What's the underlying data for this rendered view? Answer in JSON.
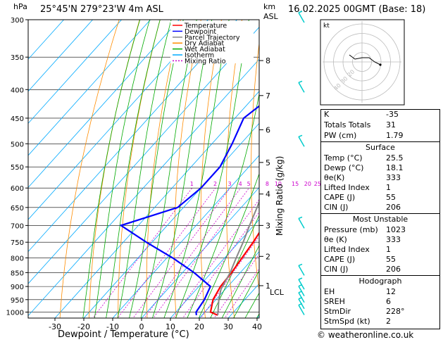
{
  "header": {
    "hpa_label": "hPa",
    "location": "25°45'N  279°23'W  4m  ASL",
    "km_label": "km",
    "asl_label": "ASL",
    "datetime": "16.02.2025  00GMT  (Base: 18)"
  },
  "footer": {
    "copyright": "© weatheronline.co.uk"
  },
  "chart_data": {
    "type": "skew-t",
    "xlabel": "Dewpoint / Temperature (°C)",
    "ylabel_right": "Mixing Ratio (g/kg)",
    "x_ticks": [
      -30,
      -20,
      -10,
      0,
      10,
      20,
      30,
      40
    ],
    "pressure_ticks": [
      300,
      350,
      400,
      450,
      500,
      550,
      600,
      650,
      700,
      750,
      800,
      850,
      900,
      950,
      1000
    ],
    "km_ticks": [
      {
        "label": "8",
        "p": 355
      },
      {
        "label": "7",
        "p": 410
      },
      {
        "label": "6",
        "p": 472
      },
      {
        "label": "5",
        "p": 540
      },
      {
        "label": "4",
        "p": 615
      },
      {
        "label": "3",
        "p": 700
      },
      {
        "label": "2",
        "p": 795
      },
      {
        "label": "1",
        "p": 897
      }
    ],
    "lcl_label": "LCL",
    "lcl_p": 910,
    "mixing_ratio_labels": [
      "1",
      "2",
      "3",
      "4",
      "5",
      "8",
      "10",
      "15",
      "20",
      "25"
    ],
    "mixing_ratio_values": [
      1,
      2,
      3,
      4,
      5,
      8,
      10,
      15,
      20,
      25
    ],
    "legend": {
      "position": "top-right",
      "items": [
        {
          "label": "Temperature",
          "color": "#ff0000",
          "style": "solid"
        },
        {
          "label": "Dewpoint",
          "color": "#0000ff",
          "style": "solid"
        },
        {
          "label": "Parcel Trajectory",
          "color": "#888888",
          "style": "solid"
        },
        {
          "label": "Dry Adiabat",
          "color": "#ff8c00",
          "style": "solid"
        },
        {
          "label": "Wet Adiabat",
          "color": "#00aa00",
          "style": "solid"
        },
        {
          "label": "Isotherm",
          "color": "#00aaff",
          "style": "solid"
        },
        {
          "label": "Mixing Ratio",
          "color": "#cc00cc",
          "style": "dotted"
        }
      ]
    },
    "series": [
      {
        "name": "Temperature",
        "color": "#ff0000",
        "points": [
          [
            25.5,
            1013
          ],
          [
            22,
            1000
          ],
          [
            19,
            950
          ],
          [
            17.5,
            900
          ],
          [
            17,
            850
          ],
          [
            16,
            800
          ],
          [
            15,
            750
          ],
          [
            13.5,
            700
          ],
          [
            10,
            650
          ],
          [
            7,
            600
          ],
          [
            3,
            550
          ],
          [
            -2,
            500
          ],
          [
            -7,
            450
          ],
          [
            -13,
            400
          ],
          [
            -20,
            350
          ],
          [
            -28,
            300
          ]
        ]
      },
      {
        "name": "Dewpoint",
        "color": "#0000ff",
        "points": [
          [
            18.1,
            1013
          ],
          [
            17,
            1000
          ],
          [
            16,
            950
          ],
          [
            14,
            900
          ],
          [
            4,
            850
          ],
          [
            -8,
            800
          ],
          [
            -22,
            750
          ],
          [
            -36,
            700
          ],
          [
            -22,
            650
          ],
          [
            -20,
            600
          ],
          [
            -20,
            550
          ],
          [
            -23,
            500
          ],
          [
            -27,
            450
          ],
          [
            -24,
            410
          ],
          [
            -30,
            400
          ],
          [
            -36,
            350
          ],
          [
            -42,
            300
          ]
        ]
      },
      {
        "name": "Parcel Trajectory",
        "color": "#888888",
        "points": [
          [
            25.5,
            1013
          ],
          [
            21,
            950
          ],
          [
            18.5,
            910
          ],
          [
            16.5,
            850
          ],
          [
            14,
            800
          ],
          [
            11.5,
            750
          ],
          [
            8.5,
            700
          ],
          [
            5.5,
            650
          ],
          [
            2,
            600
          ],
          [
            -2,
            550
          ],
          [
            -6.5,
            500
          ],
          [
            -11.5,
            450
          ],
          [
            -18,
            400
          ],
          [
            -25,
            350
          ],
          [
            -33,
            300
          ]
        ]
      }
    ],
    "hodograph": {
      "label": "kt",
      "ring_labels": [
        "10",
        "20",
        "30",
        "40"
      ],
      "color": "#000000"
    },
    "wind_barbs_color": "#00cccc"
  },
  "indices": [
    {
      "k": "K",
      "v": "-35"
    },
    {
      "k": "Totals Totals",
      "v": "31"
    },
    {
      "k": "PW (cm)",
      "v": "1.79"
    }
  ],
  "surface": {
    "title": "Surface",
    "rows": [
      {
        "k": "Temp (°C)",
        "v": "25.5"
      },
      {
        "k": "Dewp (°C)",
        "v": "18.1"
      },
      {
        "k": "θe(K)",
        "v": "333"
      },
      {
        "k": "Lifted Index",
        "v": "1"
      },
      {
        "k": "CAPE (J)",
        "v": "55"
      },
      {
        "k": "CIN (J)",
        "v": "206"
      }
    ]
  },
  "most_unstable": {
    "title": "Most Unstable",
    "rows": [
      {
        "k": "Pressure (mb)",
        "v": "1023"
      },
      {
        "k": "θe (K)",
        "v": "333"
      },
      {
        "k": "Lifted Index",
        "v": "1"
      },
      {
        "k": "CAPE (J)",
        "v": "55"
      },
      {
        "k": "CIN (J)",
        "v": "206"
      }
    ]
  },
  "hodograph_table": {
    "title": "Hodograph",
    "rows": [
      {
        "k": "EH",
        "v": "12"
      },
      {
        "k": "SREH",
        "v": "6"
      },
      {
        "k": "StmDir",
        "v": "228°"
      },
      {
        "k": "StmSpd (kt)",
        "v": "2"
      }
    ]
  }
}
